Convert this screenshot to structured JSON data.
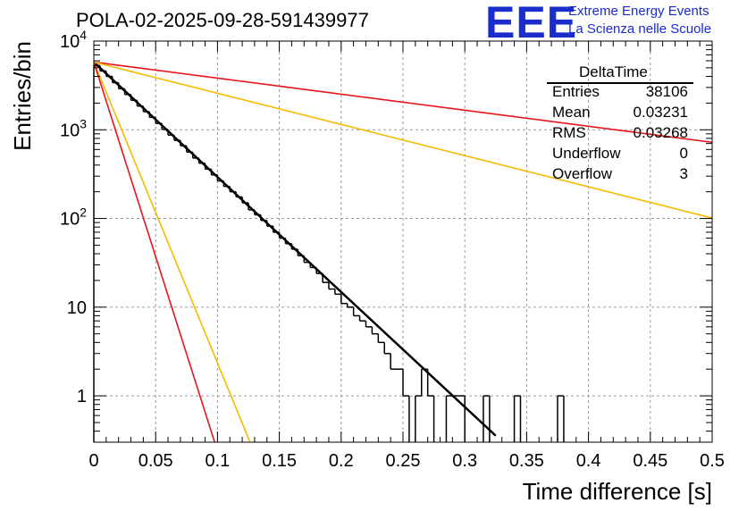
{
  "header": {
    "title": "POLA-02-2025-09-28-591439977",
    "logo_text": "EEE",
    "logo_line1": "Extreme Energy Events",
    "logo_line2": "La Scienza nelle Scuole",
    "logo_color": "#1a2ccc"
  },
  "stats_box": {
    "title": "DeltaTime",
    "rows": [
      {
        "label": "Entries",
        "value": "38106"
      },
      {
        "label": "Mean",
        "value": "0.03231"
      },
      {
        "label": "RMS",
        "value": "0.03268"
      },
      {
        "label": "Underflow",
        "value": "0"
      },
      {
        "label": "Overflow",
        "value": "3"
      }
    ]
  },
  "chart_data": {
    "type": "histogram",
    "title": "POLA-02-2025-09-28-591439977",
    "xlabel": "Time difference [s]",
    "ylabel": "Entries/bin",
    "xlim": [
      0,
      0.5
    ],
    "ylim": [
      0.3,
      10000
    ],
    "yscale": "log",
    "grid": true,
    "x_ticks": [
      "0",
      "0.05",
      "0.1",
      "0.15",
      "0.2",
      "0.25",
      "0.3",
      "0.35",
      "0.4",
      "0.45",
      "0.5"
    ],
    "y_ticks": [
      {
        "value": 1,
        "label": "1"
      },
      {
        "value": 10,
        "label": "10"
      },
      {
        "value": 100,
        "label": "10^2"
      },
      {
        "value": 1000,
        "label": "10^3"
      },
      {
        "value": 10000,
        "label": "10^4"
      }
    ],
    "histogram": {
      "bin_width": 0.005,
      "counts": [
        5300,
        4600,
        4000,
        3400,
        2900,
        2500,
        2150,
        1850,
        1600,
        1380,
        1180,
        1010,
        870,
        760,
        660,
        560,
        480,
        420,
        360,
        310,
        265,
        230,
        200,
        175,
        150,
        125,
        110,
        95,
        82,
        70,
        60,
        52,
        45,
        38,
        32,
        28,
        24,
        19,
        16,
        14,
        11,
        10,
        8,
        7,
        6,
        5,
        4,
        3,
        2,
        2,
        1,
        0,
        1,
        2,
        1,
        0,
        0,
        1,
        1,
        1,
        0,
        0,
        0,
        1,
        0,
        0,
        0,
        0,
        1,
        0,
        0,
        0,
        0,
        0,
        0,
        1,
        0,
        0,
        0,
        0,
        0,
        0,
        0,
        0,
        0,
        0,
        0,
        0,
        0,
        0,
        0,
        0,
        0,
        0,
        0,
        0,
        0,
        0,
        0,
        0
      ],
      "color": "#000000"
    },
    "fits": [
      {
        "name": "fit",
        "color": "#000000",
        "amplitude": 5800,
        "tau": 0.0335,
        "x_end": 0.325,
        "width": 2.5
      },
      {
        "name": "red-slow",
        "color": "#e8141c",
        "amplitude": 5800,
        "tau": 0.24,
        "x_end": 0.5,
        "width": 1.6
      },
      {
        "name": "orange-slow",
        "color": "#f5bb00",
        "amplitude": 5800,
        "tau": 0.1235,
        "x_end": 0.5,
        "width": 1.6
      },
      {
        "name": "orange-fast",
        "color": "#f5bb00",
        "amplitude": 5800,
        "tau": 0.0128,
        "x_end": 0.2,
        "width": 1.6
      },
      {
        "name": "red-fast",
        "color": "#e8141c",
        "amplitude": 5800,
        "tau": 0.0099,
        "x_end": 0.2,
        "width": 1.6
      }
    ]
  }
}
